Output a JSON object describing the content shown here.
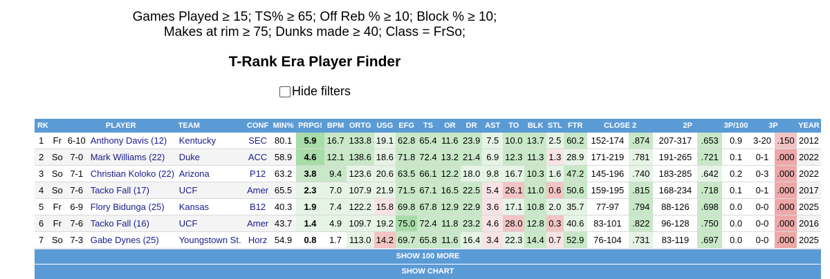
{
  "filters": {
    "line1": "Games Played ≥ 15; TS% ≥ 65; Off Reb % ≥ 10; Block % ≥ 10;",
    "line2": "Makes at rim ≥ 75; Dunks made ≥ 40; Class = FrSo;"
  },
  "page_title": "T-Rank Era Player Finder",
  "hide_filters_label": "Hide filters",
  "table": {
    "headers": [
      "RK",
      "PLAYER",
      "TEAM",
      "CONF",
      "MIN%",
      "PRPG!",
      "BPM",
      "ORTG",
      "USG",
      "EFG",
      "TS",
      "OR",
      "DR",
      "AST",
      "TO",
      "BLK",
      "STL",
      "FTR",
      "CLOSE 2",
      "2P",
      "3P/100",
      "3P",
      "YEAR"
    ],
    "rows": [
      {
        "rk": "1",
        "cls": "Fr",
        "ht": "6-10",
        "player": "Anthony Davis (12)",
        "team": "Kentucky",
        "conf": "SEC",
        "min": "80.1",
        "prpg": "5.9",
        "bpm": "16.7",
        "ortg": "133.8",
        "usg": "19.1",
        "efg": "62.8",
        "ts": "65.4",
        "or": "11.6",
        "dr": "23.9",
        "ast": "7.5",
        "to": "10.0",
        "blk": "13.7",
        "stl": "2.5",
        "ftr": "60.2",
        "close2": "152-174",
        "close2pct": ".874",
        "p2": "207-317",
        "p2pct": ".653",
        "p3_100": "0.9",
        "p3": "3-20",
        "p3pct": ".150",
        "year": "2012"
      },
      {
        "rk": "2",
        "cls": "So",
        "ht": "7-0",
        "player": "Mark Williams (22)",
        "team": "Duke",
        "conf": "ACC",
        "min": "58.9",
        "prpg": "4.6",
        "bpm": "12.1",
        "ortg": "138.6",
        "usg": "18.6",
        "efg": "71.8",
        "ts": "72.4",
        "or": "13.2",
        "dr": "21.4",
        "ast": "6.9",
        "to": "12.3",
        "blk": "11.3",
        "stl": "1.3",
        "ftr": "28.9",
        "close2": "171-219",
        "close2pct": ".781",
        "p2": "191-265",
        "p2pct": ".721",
        "p3_100": "0.1",
        "p3": "0-1",
        "p3pct": ".000",
        "year": "2022"
      },
      {
        "rk": "3",
        "cls": "So",
        "ht": "7-1",
        "player": "Christian Koloko (22)",
        "team": "Arizona",
        "conf": "P12",
        "min": "63.2",
        "prpg": "3.8",
        "bpm": "9.4",
        "ortg": "123.6",
        "usg": "20.6",
        "efg": "63.5",
        "ts": "66.1",
        "or": "12.2",
        "dr": "18.0",
        "ast": "9.8",
        "to": "16.7",
        "blk": "10.3",
        "stl": "1.6",
        "ftr": "47.2",
        "close2": "145-196",
        "close2pct": ".740",
        "p2": "183-285",
        "p2pct": ".642",
        "p3_100": "0.2",
        "p3": "0-3",
        "p3pct": ".000",
        "year": "2022"
      },
      {
        "rk": "4",
        "cls": "So",
        "ht": "7-6",
        "player": "Tacko Fall (17)",
        "team": "UCF",
        "conf": "Amer",
        "min": "65.5",
        "prpg": "2.3",
        "bpm": "7.0",
        "ortg": "107.9",
        "usg": "21.9",
        "efg": "71.5",
        "ts": "67.1",
        "or": "16.5",
        "dr": "22.5",
        "ast": "5.4",
        "to": "26.1",
        "blk": "11.0",
        "stl": "0.6",
        "ftr": "50.6",
        "close2": "159-195",
        "close2pct": ".815",
        "p2": "168-234",
        "p2pct": ".718",
        "p3_100": "0.1",
        "p3": "0-1",
        "p3pct": ".000",
        "year": "2017"
      },
      {
        "rk": "5",
        "cls": "Fr",
        "ht": "6-9",
        "player": "Flory Bidunga (25)",
        "team": "Kansas",
        "conf": "B12",
        "min": "40.3",
        "prpg": "1.9",
        "bpm": "7.4",
        "ortg": "122.2",
        "usg": "15.8",
        "efg": "69.8",
        "ts": "67.8",
        "or": "12.9",
        "dr": "22.9",
        "ast": "3.6",
        "to": "17.1",
        "blk": "10.8",
        "stl": "2.0",
        "ftr": "35.7",
        "close2": "77-97",
        "close2pct": ".794",
        "p2": "88-126",
        "p2pct": ".698",
        "p3_100": "0.0",
        "p3": "0-0",
        "p3pct": ".000",
        "year": "2025"
      },
      {
        "rk": "6",
        "cls": "Fr",
        "ht": "7-6",
        "player": "Tacko Fall (16)",
        "team": "UCF",
        "conf": "Amer",
        "min": "43.7",
        "prpg": "1.4",
        "bpm": "4.9",
        "ortg": "109.7",
        "usg": "19.2",
        "efg": "75.0",
        "ts": "72.4",
        "or": "11.8",
        "dr": "23.2",
        "ast": "4.6",
        "to": "28.0",
        "blk": "12.8",
        "stl": "0.3",
        "ftr": "40.6",
        "close2": "83-101",
        "close2pct": ".822",
        "p2": "96-128",
        "p2pct": ".750",
        "p3_100": "0.0",
        "p3": "0-0",
        "p3pct": ".000",
        "year": "2016"
      },
      {
        "rk": "7",
        "cls": "So",
        "ht": "7-3",
        "player": "Gabe Dynes (25)",
        "team": "Youngstown St.",
        "conf": "Horz",
        "min": "54.9",
        "prpg": "0.8",
        "bpm": "1.7",
        "ortg": "113.0",
        "usg": "14.2",
        "efg": "69.7",
        "ts": "65.8",
        "or": "11.6",
        "dr": "16.4",
        "ast": "3.4",
        "to": "22.3",
        "blk": "14.4",
        "stl": "0.7",
        "ftr": "52.9",
        "close2": "76-104",
        "close2pct": ".731",
        "p2": "83-119",
        "p2pct": ".697",
        "p3_100": "0.0",
        "p3": "0-0",
        "p3pct": ".000",
        "year": "2025"
      }
    ]
  },
  "show_more_label": "SHOW 100 MORE",
  "show_chart_label": "SHOW CHART"
}
